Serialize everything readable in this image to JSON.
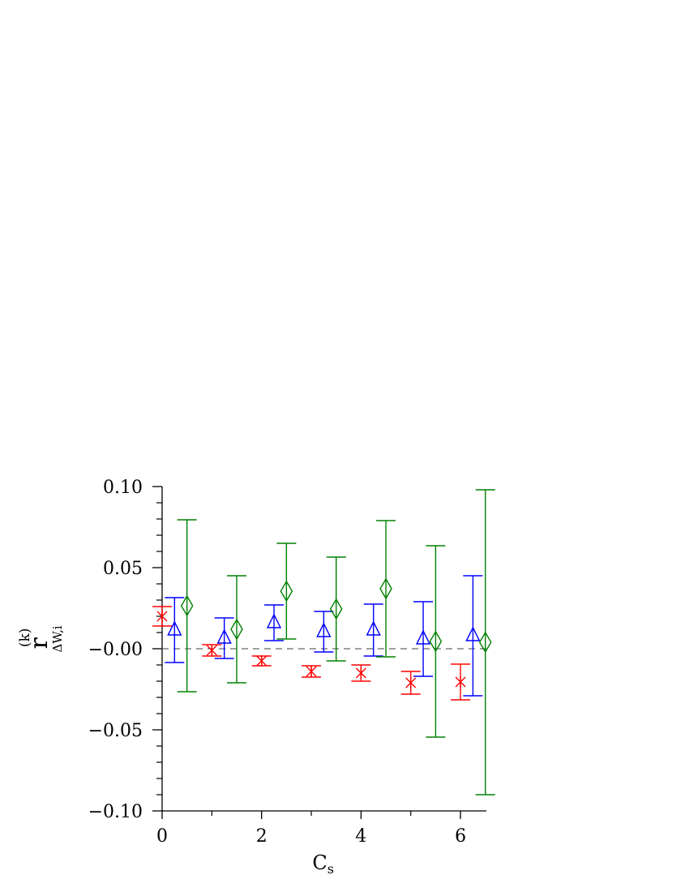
{
  "chart_data": {
    "type": "errorbar",
    "xlabel": {
      "main": "C",
      "sub": "s"
    },
    "ylabel": {
      "main": "r",
      "sup": "(k)",
      "sub": "ΔW,i"
    },
    "xlim": [
      0,
      6.5
    ],
    "ylim": [
      -0.1,
      0.1
    ],
    "xticks": [
      0,
      2,
      4,
      6
    ],
    "xminorticks": [
      1,
      3,
      5
    ],
    "yticks": [
      {
        "value": 0.1,
        "label": "0.10"
      },
      {
        "value": 0.05,
        "label": "0.05"
      },
      {
        "value": 0,
        "label": "−0.00"
      },
      {
        "value": -0.05,
        "label": "−0.05"
      },
      {
        "value": -0.1,
        "label": "−0.10"
      }
    ],
    "yminorticks": [
      0.09,
      0.08,
      0.07,
      0.06,
      0.04,
      0.03,
      0.02,
      0.01,
      -0.01,
      -0.02,
      -0.03,
      -0.04,
      -0.06,
      -0.07,
      -0.08,
      -0.09
    ],
    "hline": 0,
    "series": [
      {
        "color": "#ff0000",
        "marker": "asterisk",
        "x": [
          0,
          1,
          2,
          3,
          4,
          5,
          6
        ],
        "values": [
          0.02,
          -0.001,
          -0.0075,
          -0.014,
          -0.015,
          -0.021,
          -0.0205
        ],
        "errors": [
          0.006,
          0.0035,
          0.003,
          0.0035,
          0.005,
          0.007,
          0.011
        ]
      },
      {
        "color": "#0000ff",
        "marker": "triangle",
        "x": [
          0.25,
          1.25,
          2.25,
          3.25,
          4.25,
          5.25,
          6.25
        ],
        "values": [
          0.0115,
          0.0065,
          0.016,
          0.0105,
          0.0115,
          0.006,
          0.008
        ],
        "errors": [
          0.02,
          0.0125,
          0.011,
          0.0125,
          0.016,
          0.023,
          0.037
        ]
      },
      {
        "color": "#008000",
        "marker": "diamond",
        "x": [
          0.5,
          1.5,
          2.5,
          3.5,
          4.5,
          5.5,
          6.5
        ],
        "values": [
          0.0265,
          0.012,
          0.0355,
          0.0245,
          0.037,
          0.0045,
          0.004
        ],
        "errors": [
          0.053,
          0.033,
          0.0295,
          0.032,
          0.042,
          0.059,
          0.094
        ]
      }
    ]
  }
}
